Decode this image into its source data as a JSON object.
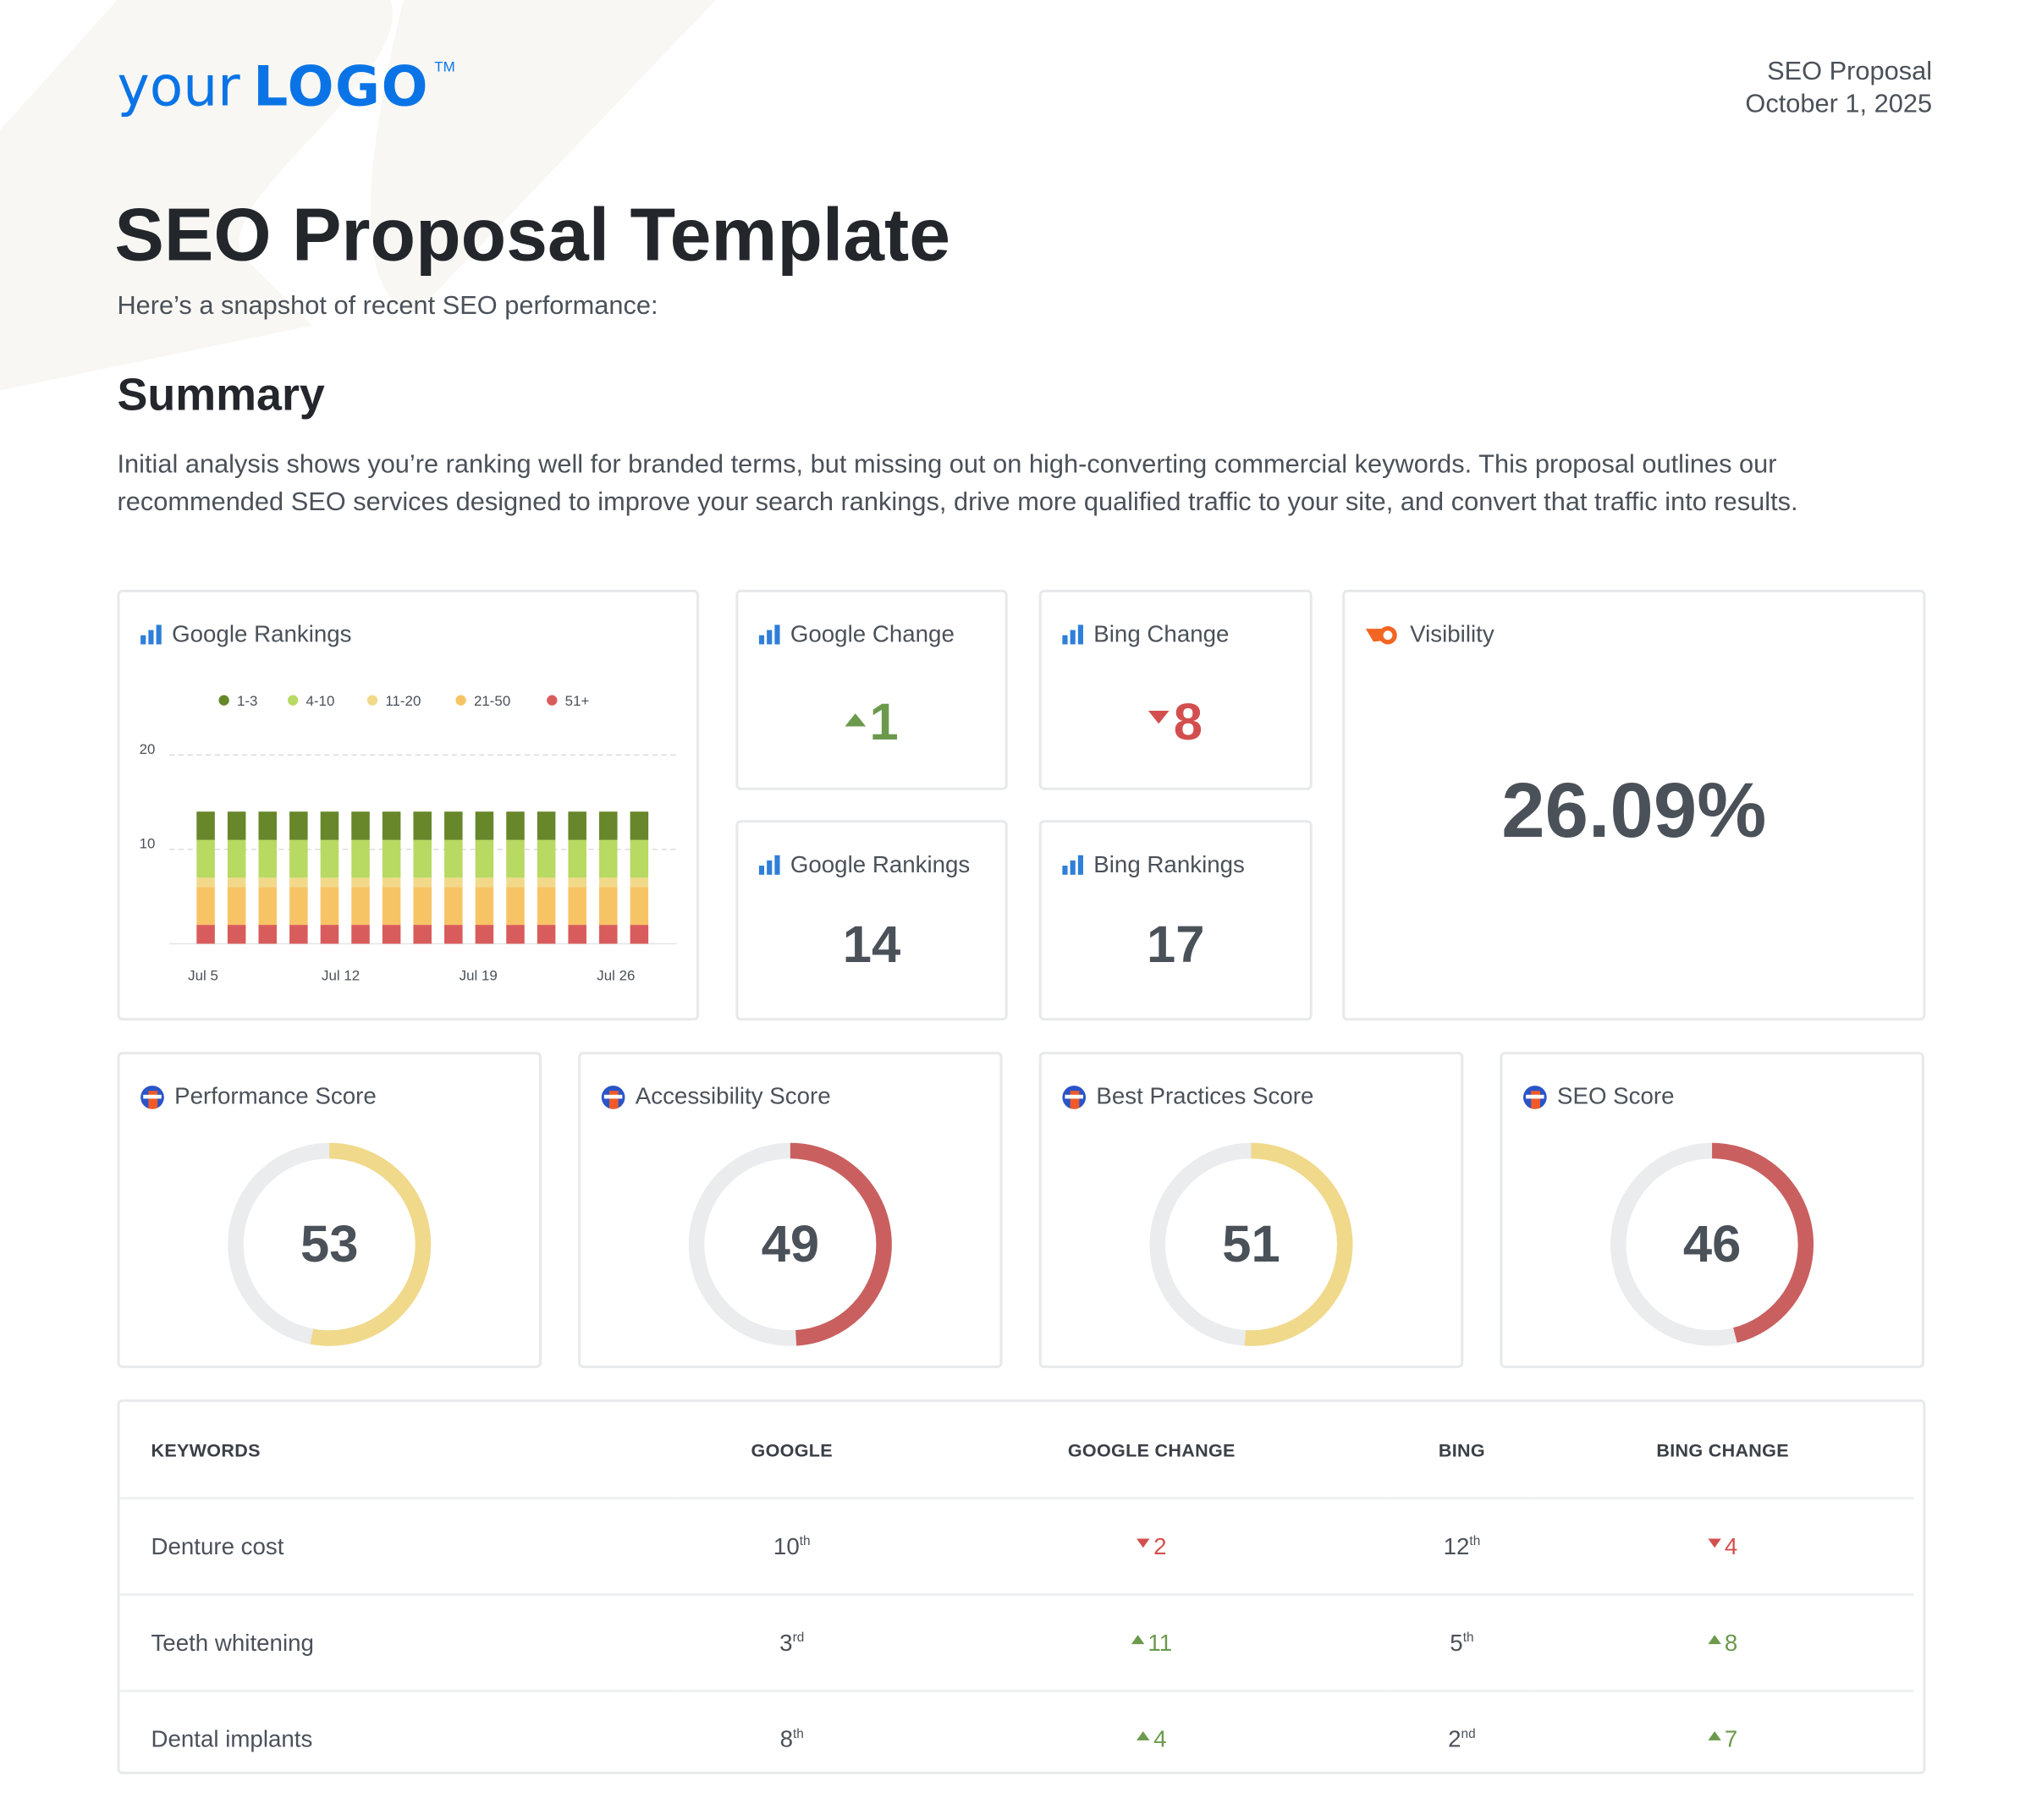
{
  "logo": {
    "text_small": "your",
    "text_big": "LOGO",
    "trademark": "TM"
  },
  "header": {
    "doc_type": "SEO Proposal",
    "date": "October 1, 2025"
  },
  "title": "SEO Proposal Template",
  "subtitle": "Here’s a snapshot of recent SEO performance:",
  "summary": {
    "heading": "Summary",
    "text": "Initial analysis shows you’re ranking well for branded terms, but missing out on high-converting commercial keywords. This proposal outlines our recommended SEO services designed to improve your search rankings, drive more qualified traffic to your site, and convert that traffic into results."
  },
  "cards": {
    "google_rankings_chart": {
      "title": "Google Rankings",
      "icon": "bar-chart-icon"
    },
    "google_change": {
      "title": "Google Change",
      "value": "1",
      "direction": "up",
      "icon": "bar-chart-icon"
    },
    "bing_change": {
      "title": "Bing Change",
      "value": "8",
      "direction": "down",
      "icon": "bar-chart-icon"
    },
    "google_rankings": {
      "title": "Google Rankings",
      "value": "14",
      "icon": "bar-chart-icon"
    },
    "bing_rankings": {
      "title": "Bing Rankings",
      "value": "17",
      "icon": "bar-chart-icon"
    },
    "visibility": {
      "title": "Visibility",
      "value": "26.09%",
      "icon": "semrush-icon"
    }
  },
  "scores": [
    {
      "title": "Performance Score",
      "value": 53,
      "color": "#f0d98a",
      "icon": "lighthouse-icon"
    },
    {
      "title": "Accessibility Score",
      "value": 49,
      "color": "#c9605f",
      "icon": "lighthouse-icon"
    },
    {
      "title": "Best Practices Score",
      "value": 51,
      "color": "#f0d98a",
      "icon": "lighthouse-icon"
    },
    {
      "title": "SEO Score",
      "value": 46,
      "color": "#c9605f",
      "icon": "lighthouse-icon"
    }
  ],
  "table": {
    "headers": [
      "KEYWORDS",
      "GOOGLE",
      "GOOGLE CHANGE",
      "BING",
      "BING CHANGE"
    ],
    "rows": [
      {
        "keyword": "Denture cost",
        "google": "10",
        "google_suffix": "th",
        "google_change": "2",
        "google_dir": "down",
        "bing": "12",
        "bing_suffix": "th",
        "bing_change": "4",
        "bing_dir": "down"
      },
      {
        "keyword": "Teeth whitening",
        "google": "3",
        "google_suffix": "rd",
        "google_change": "11",
        "google_dir": "up",
        "bing": "5",
        "bing_suffix": "th",
        "bing_change": "8",
        "bing_dir": "up"
      },
      {
        "keyword": "Dental implants",
        "google": "8",
        "google_suffix": "th",
        "google_change": "4",
        "google_dir": "up",
        "bing": "2",
        "bing_suffix": "nd",
        "bing_change": "7",
        "bing_dir": "up"
      }
    ]
  },
  "chart_data": {
    "type": "bar",
    "stacked": true,
    "title": "Google Rankings",
    "x_ticks": [
      "Jul 5",
      "Jul 12",
      "Jul 19",
      "Jul 26"
    ],
    "y_ticks": [
      "10",
      "20"
    ],
    "ylim": [
      0,
      20
    ],
    "grid": true,
    "legend_position": "top",
    "bar_count": 15,
    "series": [
      {
        "name": "51+",
        "color": "#d95c5c",
        "values": [
          2,
          2,
          2,
          2,
          2,
          2,
          2,
          2,
          2,
          2,
          2,
          2,
          2,
          2,
          2
        ]
      },
      {
        "name": "21-50",
        "color": "#f7c465",
        "values": [
          4,
          4,
          4,
          4,
          4,
          4,
          4,
          4,
          4,
          4,
          4,
          4,
          4,
          4,
          4
        ]
      },
      {
        "name": "11-20",
        "color": "#f2d98a",
        "values": [
          1,
          1,
          1,
          1,
          1,
          1,
          1,
          1,
          1,
          1,
          1,
          1,
          1,
          1,
          1
        ]
      },
      {
        "name": "4-10",
        "color": "#b8d962",
        "values": [
          4,
          4,
          4,
          4,
          4,
          4,
          4,
          4,
          4,
          4,
          4,
          4,
          4,
          4,
          4
        ]
      },
      {
        "name": "1-3",
        "color": "#67872a",
        "values": [
          3,
          3,
          3,
          3,
          3,
          3,
          3,
          3,
          3,
          3,
          3,
          3,
          3,
          3,
          3
        ]
      }
    ],
    "legend_order": [
      "1-3",
      "4-10",
      "11-20",
      "21-50",
      "51+"
    ]
  }
}
